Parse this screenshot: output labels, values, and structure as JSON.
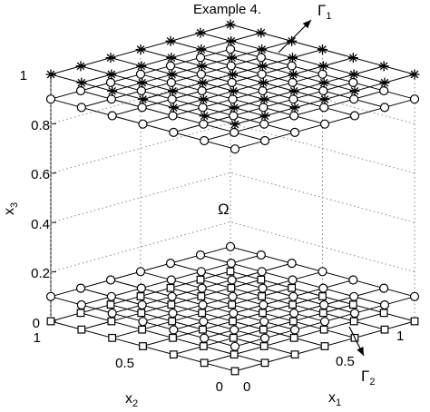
{
  "figure": {
    "title": "Example 4.",
    "axes": {
      "x1": {
        "label": "x",
        "subscript": "1",
        "ticks": [
          "0",
          "0.5",
          "1"
        ]
      },
      "x2": {
        "label": "x",
        "subscript": "2",
        "ticks": [
          "0",
          "0.5",
          "1"
        ]
      },
      "x3": {
        "label": "x",
        "subscript": "3",
        "ticks": [
          "0",
          "0.2",
          "0.4",
          "0.6",
          "0.8",
          "1"
        ]
      }
    },
    "annotations": {
      "gamma1": {
        "symbol": "Γ",
        "subscript": "1"
      },
      "gamma2": {
        "symbol": "Γ",
        "subscript": "2"
      },
      "omega": {
        "symbol": "Ω"
      }
    },
    "grid": true
  },
  "chart_data": {
    "type": "scatter",
    "grid_size": 7,
    "x_range": [
      0,
      1
    ],
    "x2_range": [
      0,
      1
    ],
    "x3_range": [
      0,
      1
    ],
    "series": [
      {
        "marker": "asterisk",
        "x3": 1
      },
      {
        "marker": "circle",
        "x3": 0.9
      },
      {
        "marker": "circle",
        "x3": 0.1
      },
      {
        "marker": "square",
        "x3": 0
      }
    ]
  }
}
